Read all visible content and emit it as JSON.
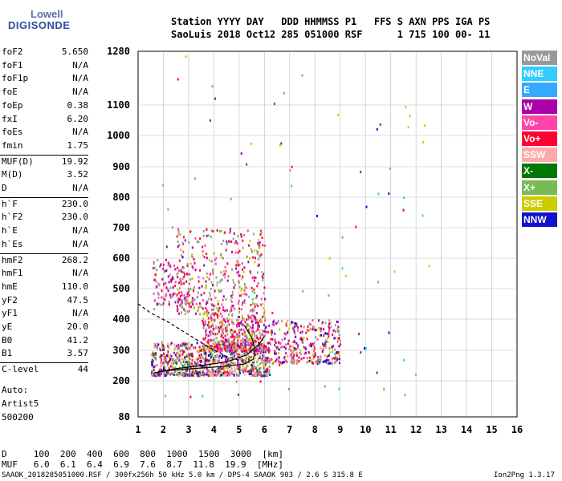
{
  "logo": {
    "line1": "Lowell",
    "line2": "DIGISONDE"
  },
  "header": {
    "row1": "Station YYYY DAY   DDD HHMMSS P1   FFS S AXN PPS IGA PS",
    "row2": "SaoLuis 2018 Oct12 285 051000 RSF      1 715 100 00- 11"
  },
  "params": [
    {
      "name": "foF2",
      "value": "5.650"
    },
    {
      "name": "foF1",
      "value": "N/A"
    },
    {
      "name": "foF1p",
      "value": "N/A"
    },
    {
      "name": "foE",
      "value": "N/A"
    },
    {
      "name": "foEp",
      "value": "0.38"
    },
    {
      "name": "fxI",
      "value": "6.20"
    },
    {
      "name": "foEs",
      "value": "N/A"
    },
    {
      "name": "fmin",
      "value": "1.75"
    },
    {
      "name": "MUF(D)",
      "value": "19.92"
    },
    {
      "name": "M(D)",
      "value": "3.52"
    },
    {
      "name": "D",
      "value": "N/A"
    },
    {
      "name": "h`F",
      "value": "230.0"
    },
    {
      "name": "h`F2",
      "value": "230.0"
    },
    {
      "name": "h`E",
      "value": "N/A"
    },
    {
      "name": "h`Es",
      "value": "N/A"
    },
    {
      "name": "hmF2",
      "value": "268.2"
    },
    {
      "name": "hmF1",
      "value": "N/A"
    },
    {
      "name": "hmE",
      "value": "110.0"
    },
    {
      "name": "yF2",
      "value": "47.5"
    },
    {
      "name": "yF1",
      "value": "N/A"
    },
    {
      "name": "yE",
      "value": "20.0"
    },
    {
      "name": "B0",
      "value": "41.2"
    },
    {
      "name": "B1",
      "value": "3.57"
    },
    {
      "name": "C-level",
      "value": "44"
    }
  ],
  "auto": {
    "line1": "Auto:",
    "line2": "Artist5",
    "line3": "500200"
  },
  "legend": [
    {
      "label": "NoVal",
      "color": "#999999"
    },
    {
      "label": "NNE",
      "color": "#33ccff"
    },
    {
      "label": "E",
      "color": "#33aaff"
    },
    {
      "label": "W",
      "color": "#aa00aa"
    },
    {
      "label": "Vo-",
      "color": "#ff44aa"
    },
    {
      "label": "Vo+",
      "color": "#ff0033"
    },
    {
      "label": "SSW",
      "color": "#ffaaaa"
    },
    {
      "label": "X-",
      "color": "#007700"
    },
    {
      "label": "X+",
      "color": "#77bb55"
    },
    {
      "label": "SSE",
      "color": "#cccc00"
    },
    {
      "label": "NNW",
      "color": "#1111cc"
    }
  ],
  "chart_data": {
    "type": "scatter",
    "title": "",
    "xlabel": "",
    "ylabel": "",
    "xlim": [
      1,
      16
    ],
    "ylim": [
      80,
      1280
    ],
    "y_scale": "nonlinear",
    "x_ticks": [
      "1",
      "2",
      "3",
      "4",
      "5",
      "6",
      "7",
      "8",
      "9",
      "10",
      "11",
      "12",
      "13",
      "14",
      "15",
      "16"
    ],
    "y_ticks": [
      {
        "value": 80,
        "label": "80"
      },
      {
        "value": 200,
        "label": "200"
      },
      {
        "value": 300,
        "label": "300"
      },
      {
        "value": 400,
        "label": "400"
      },
      {
        "value": 500,
        "label": "500"
      },
      {
        "value": 600,
        "label": "600"
      },
      {
        "value": 700,
        "label": "700"
      },
      {
        "value": 800,
        "label": "800"
      },
      {
        "value": 900,
        "label": "900"
      },
      {
        "value": 1000,
        "label": "1000"
      },
      {
        "value": 1100,
        "label": "1100"
      },
      {
        "value": 1280,
        "label": "1280"
      }
    ],
    "grid": true,
    "clusters": [
      {
        "f": [
          1.5,
          6.2
        ],
        "h": [
          220,
          330
        ],
        "n": 900,
        "colors": [
          "#ff0033",
          "#ff44aa",
          "#aa00aa",
          "#ffaaaa",
          "#cccc00",
          "#77bb55",
          "#007700",
          "#999999",
          "#1111cc"
        ]
      },
      {
        "f": [
          3.5,
          6.0
        ],
        "h": [
          300,
          420
        ],
        "n": 450,
        "colors": [
          "#ff0033",
          "#ff44aa",
          "#aa00aa",
          "#cccc00",
          "#999999"
        ]
      },
      {
        "f": [
          6.0,
          9.0
        ],
        "h": [
          260,
          400
        ],
        "n": 350,
        "colors": [
          "#ff0033",
          "#ff44aa",
          "#aa00aa",
          "#cccc00",
          "#1111cc",
          "#999999"
        ]
      },
      {
        "f": [
          2.5,
          6.0
        ],
        "h": [
          420,
          700
        ],
        "n": 380,
        "colors": [
          "#aa00aa",
          "#ff44aa",
          "#ff0033",
          "#999999",
          "#cccc00",
          "#77bb55"
        ]
      },
      {
        "f": [
          1.5,
          3.0
        ],
        "h": [
          450,
          600
        ],
        "n": 120,
        "colors": [
          "#aa00aa",
          "#ff0033",
          "#999999",
          "#ff44aa"
        ]
      },
      {
        "f": [
          1.5,
          12.5
        ],
        "h": [
          150,
          1280
        ],
        "n": 90,
        "colors": [
          "#33ccff",
          "#999999",
          "#aa00aa",
          "#ff0033",
          "#cccc00",
          "#77bb55",
          "#1111cc"
        ]
      }
    ],
    "traces": [
      {
        "name": "ordinary",
        "color": "#000000",
        "dash": false,
        "points": [
          [
            1.8,
            230
          ],
          [
            2.5,
            236
          ],
          [
            3.5,
            242
          ],
          [
            4.5,
            248
          ],
          [
            5.2,
            255
          ],
          [
            5.55,
            270
          ],
          [
            5.65,
            300
          ],
          [
            5.5,
            340
          ],
          [
            5.2,
            380
          ]
        ]
      },
      {
        "name": "extraordinary",
        "color": "#000000",
        "dash": false,
        "points": [
          [
            1.6,
            225
          ],
          [
            2.5,
            240
          ],
          [
            3.5,
            250
          ],
          [
            4.5,
            262
          ],
          [
            5.3,
            285
          ],
          [
            5.8,
            320
          ],
          [
            6.0,
            345
          ]
        ]
      },
      {
        "name": "profile",
        "color": "#000000",
        "dash": true,
        "points": [
          [
            1.0,
            450
          ],
          [
            1.5,
            420
          ],
          [
            2.2,
            390
          ],
          [
            3.0,
            350
          ],
          [
            3.8,
            310
          ],
          [
            4.5,
            280
          ],
          [
            5.2,
            262
          ],
          [
            5.65,
            260
          ]
        ]
      }
    ]
  },
  "bottom_table": {
    "d_row": "D     100  200  400  600  800  1000  1500  3000  [km]",
    "muf_row": "MUF   6.0  6.1  6.4  6.9  7.6  8.7  11.8  19.9  [MHz]"
  },
  "footer": {
    "left": "SAAOK_2018285051000.RSF / 300fx256h 50 kHz 5.0 km / DPS-4 SAAOK 903 / 2.6 S 315.8 E",
    "right": "Ion2Png 1.3.17"
  }
}
